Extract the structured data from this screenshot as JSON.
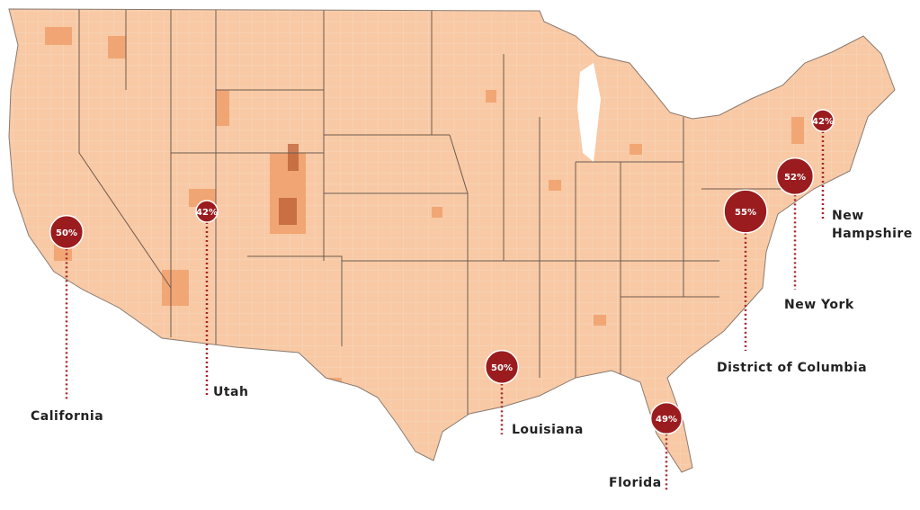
{
  "callouts": [
    {
      "label": "California",
      "value": 50,
      "value_label": "50%"
    },
    {
      "label": "Utah",
      "value": 42,
      "value_label": "42%"
    },
    {
      "label": "Louisiana",
      "value": 50,
      "value_label": "50%"
    },
    {
      "label": "Florida",
      "value": 49,
      "value_label": "49%"
    },
    {
      "label": "District of Columbia",
      "value": 55,
      "value_label": "55%"
    },
    {
      "label": "New York",
      "value": 52,
      "value_label": "52%"
    },
    {
      "label": "New Hampshire",
      "value": 42,
      "value_label": "42%"
    }
  ]
}
